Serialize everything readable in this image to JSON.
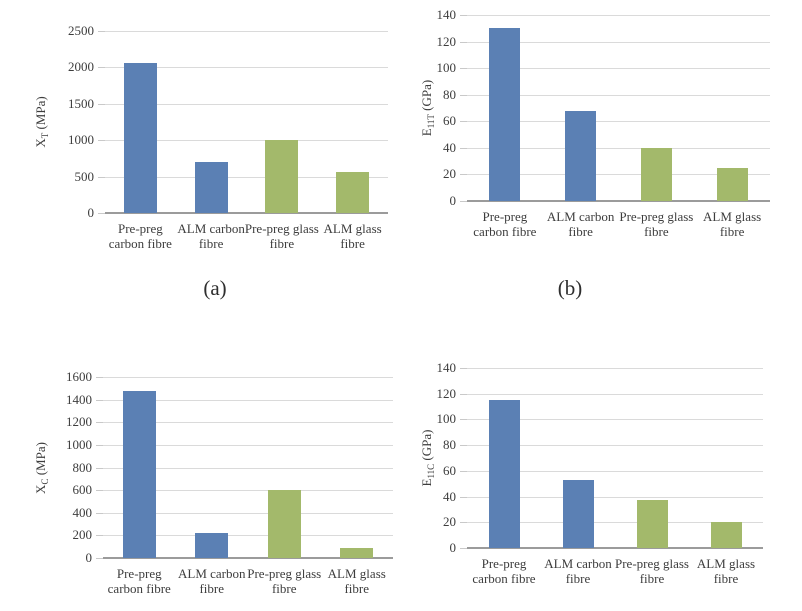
{
  "figure": {
    "background": "#ffffff",
    "caption_a": "(a)",
    "caption_b": "(b)"
  },
  "colors": {
    "carbon_fibre_bar": "#5b80b4",
    "glass_fibre_bar": "#a3b96b",
    "gridline": "#dadada",
    "axis_line": "#9b9b9b",
    "tick_mark": "#c9c9c9",
    "text": "#3d3d3d"
  },
  "chart_data": [
    {
      "type": "bar",
      "caption": "(a)",
      "ylabel": "XT (MPa)",
      "ylabel_parts": {
        "base": "X",
        "sub": "T",
        "unit": " (MPa)"
      },
      "xlabel": "",
      "categories": [
        "Pre-preg carbon fibre",
        "ALM carbon fibre",
        "Pre-preg glass fibre",
        "ALM glass fibre"
      ],
      "values": [
        2060,
        700,
        1000,
        570
      ],
      "bar_colors": [
        "#5b80b4",
        "#5b80b4",
        "#a3b96b",
        "#a3b96b"
      ],
      "ylim": [
        0,
        2500
      ],
      "ytick_step": 500,
      "grid": true,
      "legend": "none"
    },
    {
      "type": "bar",
      "caption": "(b)",
      "ylabel": "E11T (GPa)",
      "ylabel_parts": {
        "base": "E",
        "sub": "11T",
        "unit": " (GPa)"
      },
      "xlabel": "",
      "categories": [
        "Pre-preg carbon fibre",
        "ALM carbon fibre",
        "Pre-preg glass fibre",
        "ALM glass fibre"
      ],
      "values": [
        130,
        68,
        40,
        25
      ],
      "bar_colors": [
        "#5b80b4",
        "#5b80b4",
        "#a3b96b",
        "#a3b96b"
      ],
      "ylim": [
        0,
        140
      ],
      "ytick_step": 20,
      "grid": true,
      "legend": "none"
    },
    {
      "type": "bar",
      "caption": "",
      "ylabel": "XC (MPa)",
      "ylabel_parts": {
        "base": "X",
        "sub": "C",
        "unit": " (MPa)"
      },
      "xlabel": "",
      "categories": [
        "Pre-preg carbon fibre",
        "ALM carbon fibre",
        "Pre-preg glass fibre",
        "ALM glass fibre"
      ],
      "values": [
        1480,
        220,
        600,
        90
      ],
      "bar_colors": [
        "#5b80b4",
        "#5b80b4",
        "#a3b96b",
        "#a3b96b"
      ],
      "ylim": [
        0,
        1600
      ],
      "ytick_step": 200,
      "grid": true,
      "legend": "none"
    },
    {
      "type": "bar",
      "caption": "",
      "ylabel": "E11C (GPa)",
      "ylabel_parts": {
        "base": "E",
        "sub": "11C",
        "unit": " (GPa)"
      },
      "xlabel": "",
      "categories": [
        "Pre-preg carbon fibre",
        "ALM carbon fibre",
        "Pre-preg glass fibre",
        "ALM glass fibre"
      ],
      "values": [
        115,
        53,
        37,
        20
      ],
      "bar_colors": [
        "#5b80b4",
        "#5b80b4",
        "#a3b96b",
        "#a3b96b"
      ],
      "ylim": [
        0,
        140
      ],
      "ytick_step": 20,
      "grid": true,
      "legend": "none"
    }
  ]
}
